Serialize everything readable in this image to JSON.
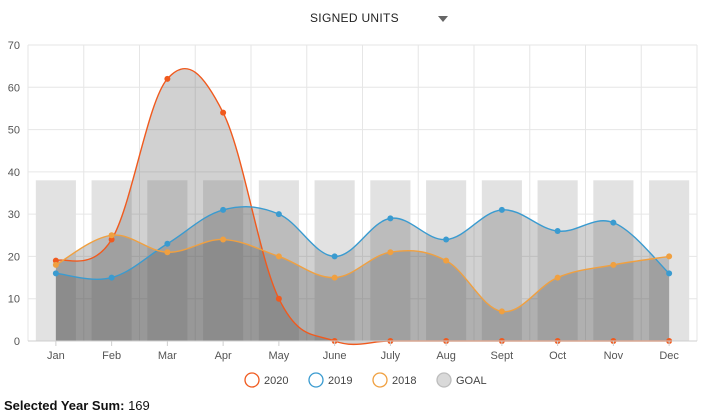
{
  "header": {
    "dropdown_label": "SIGNED UNITS"
  },
  "footer": {
    "label": "Selected Year Sum:",
    "value": "169"
  },
  "colors": {
    "s2020": "#f05a1e",
    "s2019": "#3a9bd0",
    "s2018": "#f0a040",
    "goal": "#e2e2e2",
    "grid": "#e6e6e6"
  },
  "chart_data": {
    "type": "line",
    "categories": [
      "Jan",
      "Feb",
      "Mar",
      "Apr",
      "May",
      "June",
      "July",
      "Aug",
      "Sept",
      "Oct",
      "Nov",
      "Dec"
    ],
    "ylim": [
      0,
      70
    ],
    "yticks": [
      0,
      10,
      20,
      30,
      40,
      50,
      60,
      70
    ],
    "grid": true,
    "legend_position": "bottom",
    "series": [
      {
        "name": "2020",
        "type": "area-spline",
        "color": "#f05a1e",
        "values": [
          19,
          24,
          62,
          54,
          10,
          0,
          0,
          0,
          0,
          0,
          0,
          0
        ]
      },
      {
        "name": "2019",
        "type": "area-spline",
        "color": "#3a9bd0",
        "values": [
          16,
          15,
          23,
          31,
          30,
          20,
          29,
          24,
          31,
          26,
          28,
          16
        ]
      },
      {
        "name": "2018",
        "type": "area-spline",
        "color": "#f0a040",
        "values": [
          18,
          25,
          21,
          24,
          20,
          15,
          21,
          19,
          7,
          15,
          18,
          20
        ]
      },
      {
        "name": "GOAL",
        "type": "bar",
        "color": "#e2e2e2",
        "values": [
          38,
          38,
          38,
          38,
          38,
          38,
          38,
          38,
          38,
          38,
          38,
          38
        ]
      }
    ]
  }
}
